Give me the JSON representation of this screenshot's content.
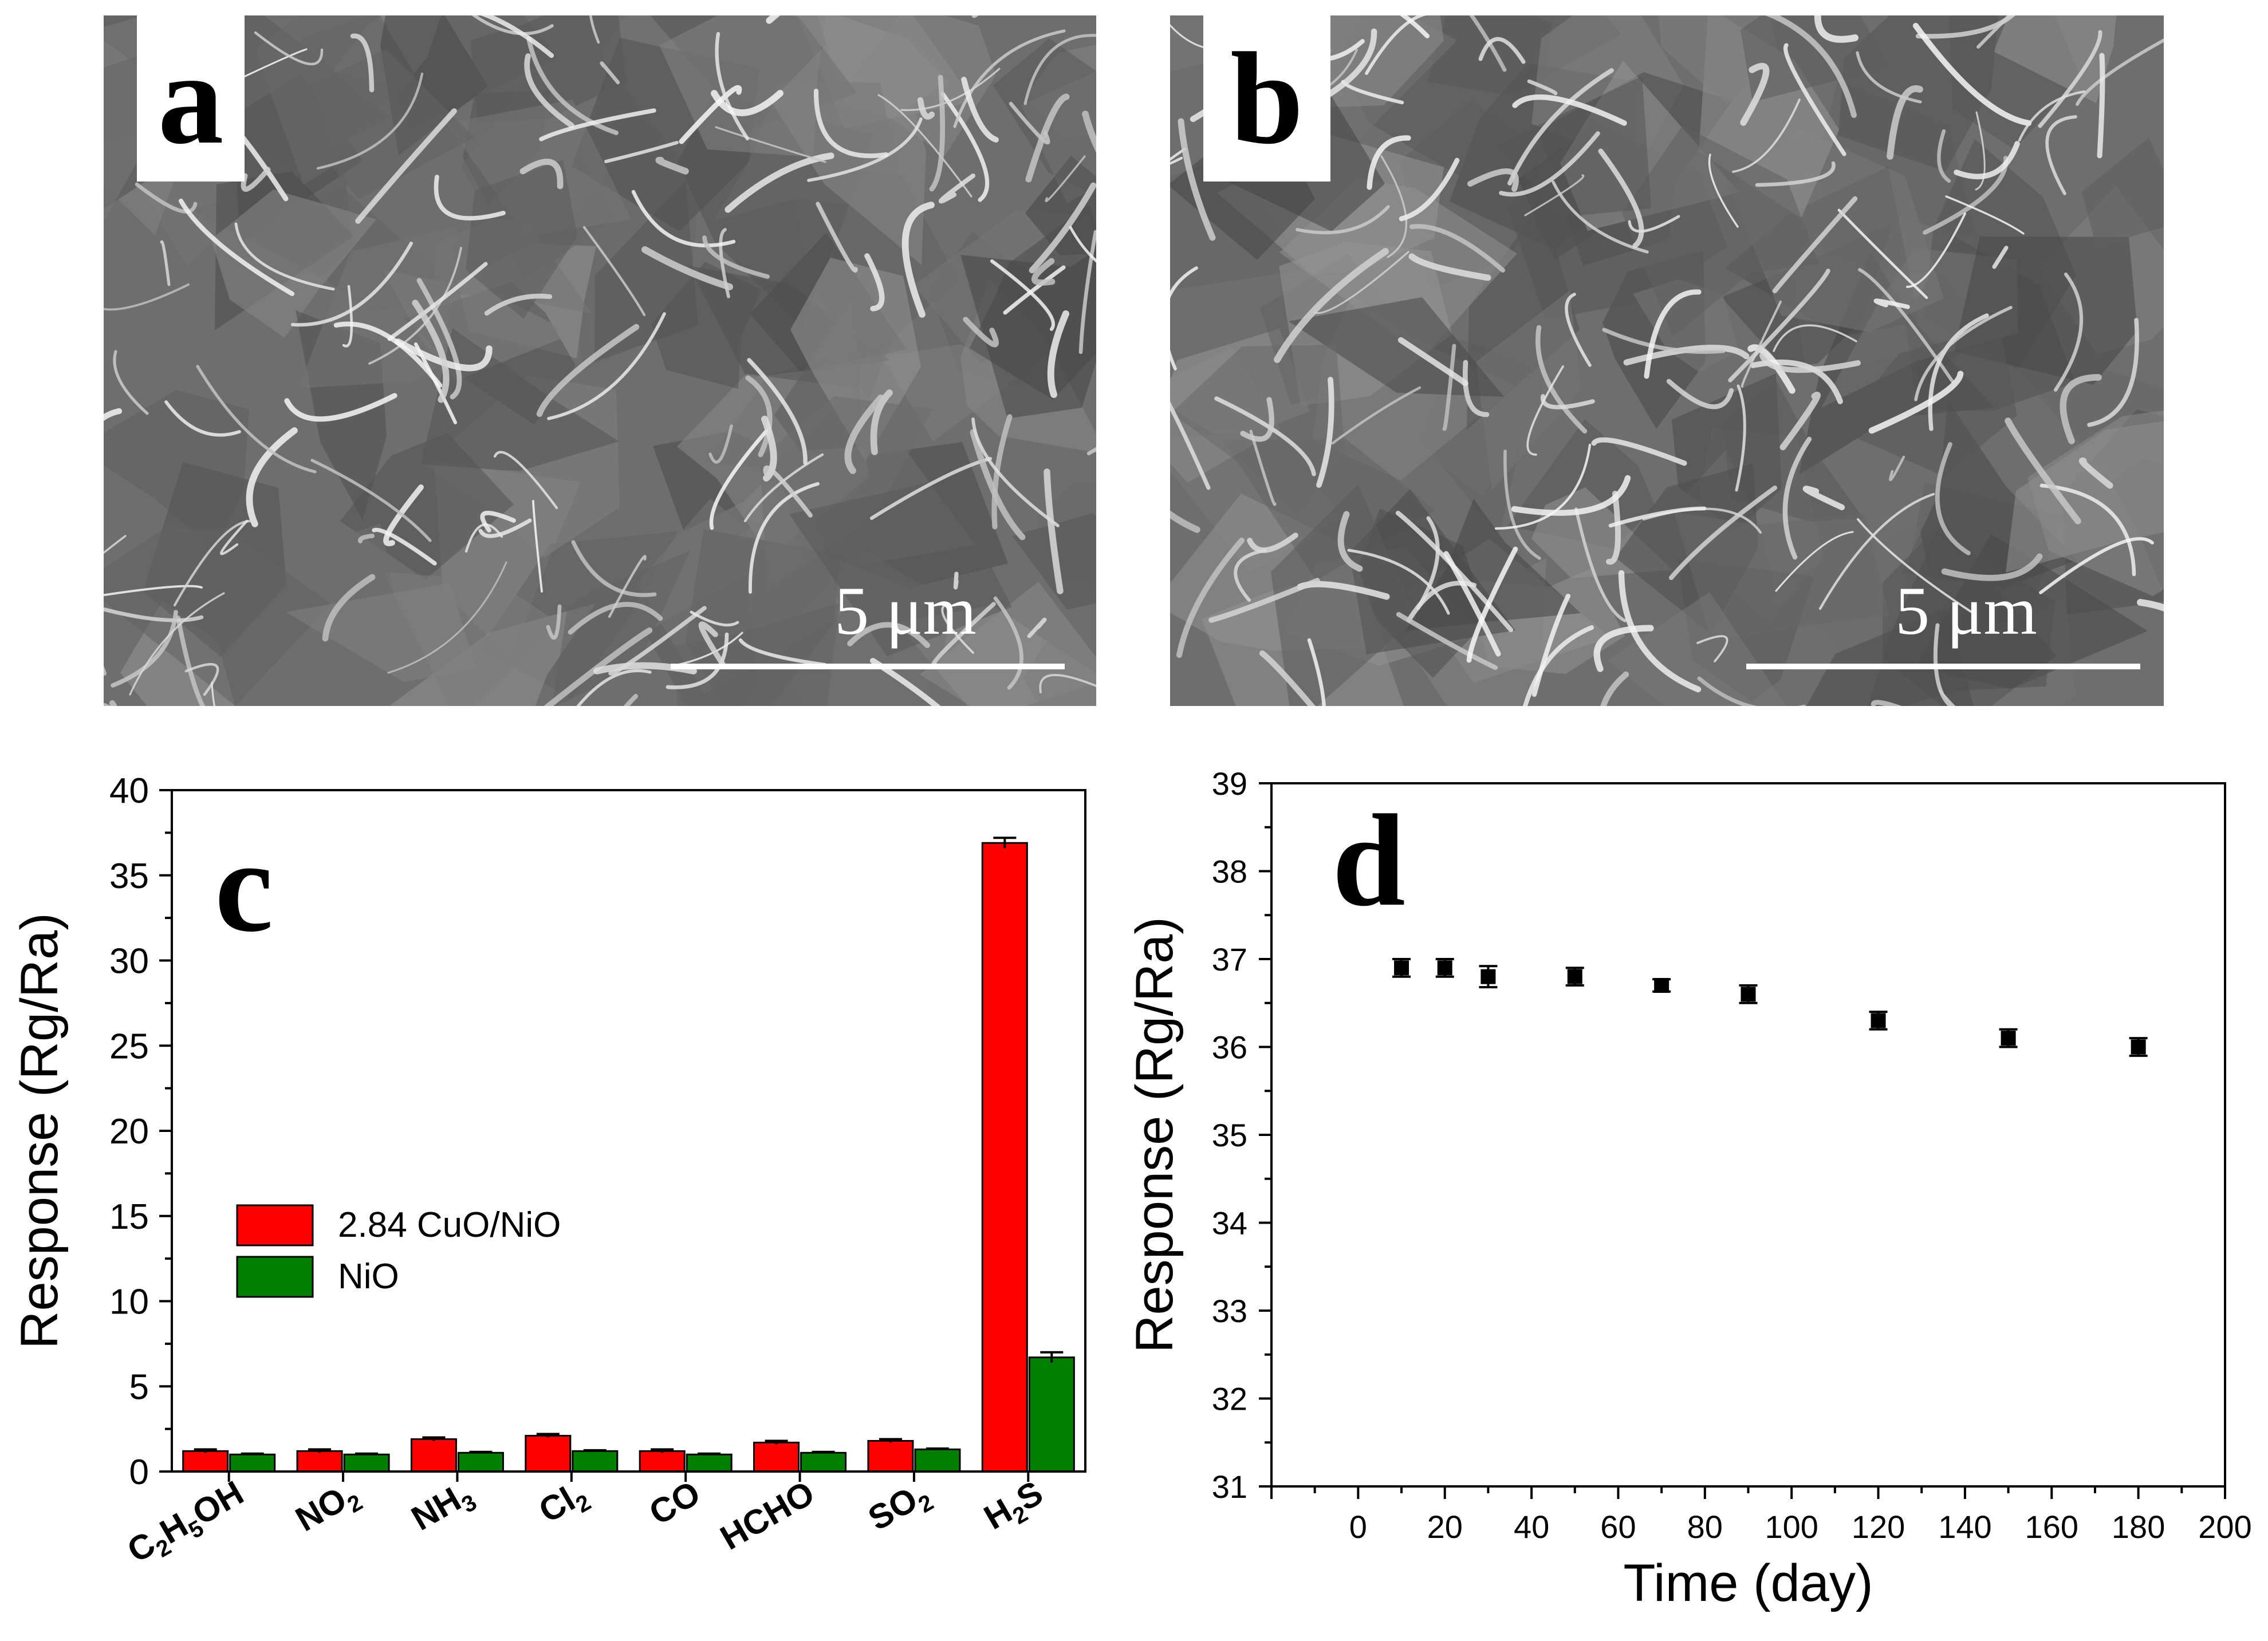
{
  "panels": {
    "a": {
      "letter": "a",
      "scale_label": "5 μm"
    },
    "b": {
      "letter": "b",
      "scale_label": "5 μm"
    },
    "c": {
      "letter": "c"
    },
    "d": {
      "letter": "d"
    }
  },
  "chart_data": [
    {
      "panel": "c",
      "type": "bar",
      "categories": [
        "C2H5OH",
        "NO2",
        "NH3",
        "Cl2",
        "CO",
        "HCHO",
        "SO2",
        "H2S"
      ],
      "category_labels": [
        [
          {
            "t": "C"
          },
          {
            "t": "2",
            "sub": true
          },
          {
            "t": "H"
          },
          {
            "t": "5",
            "sub": true
          },
          {
            "t": "OH"
          }
        ],
        [
          {
            "t": "NO"
          },
          {
            "t": "2",
            "sub": true
          }
        ],
        [
          {
            "t": "NH"
          },
          {
            "t": "3",
            "sub": true
          }
        ],
        [
          {
            "t": "Cl"
          },
          {
            "t": "2",
            "sub": true
          }
        ],
        [
          {
            "t": "CO"
          }
        ],
        [
          {
            "t": "HCHO"
          }
        ],
        [
          {
            "t": "SO"
          },
          {
            "t": "2",
            "sub": true
          }
        ],
        [
          {
            "t": "H"
          },
          {
            "t": "2",
            "sub": true
          },
          {
            "t": "S"
          }
        ]
      ],
      "series": [
        {
          "name": "2.84 CuO/NiO",
          "color": "#ff0000",
          "values": [
            1.2,
            1.2,
            1.9,
            2.1,
            1.2,
            1.7,
            1.8,
            36.9
          ],
          "errors": [
            0.1,
            0.1,
            0.1,
            0.1,
            0.1,
            0.1,
            0.1,
            0.3
          ]
        },
        {
          "name": "NiO",
          "color": "#008000",
          "values": [
            1.0,
            1.0,
            1.1,
            1.2,
            1.0,
            1.1,
            1.3,
            6.7
          ],
          "errors": [
            0.05,
            0.05,
            0.05,
            0.05,
            0.05,
            0.05,
            0.05,
            0.3
          ]
        }
      ],
      "ylabel": "Response (Rg/Ra)",
      "ylim": [
        0,
        40
      ],
      "yticks": [
        0,
        5,
        10,
        15,
        20,
        25,
        30,
        35,
        40
      ],
      "legend": "center-left",
      "grid": false
    },
    {
      "panel": "d",
      "type": "scatter",
      "x": [
        10,
        20,
        30,
        50,
        70,
        90,
        120,
        150,
        180
      ],
      "y": [
        36.9,
        36.9,
        36.8,
        36.8,
        36.7,
        36.6,
        36.3,
        36.1,
        36.0
      ],
      "errors": [
        0.1,
        0.1,
        0.12,
        0.1,
        0.07,
        0.1,
        0.1,
        0.1,
        0.1
      ],
      "xlabel": "Time (day)",
      "ylabel": "Response (Rg/Ra)",
      "xlim": [
        -20,
        200
      ],
      "ylim": [
        31,
        39
      ],
      "xticks": [
        0,
        20,
        40,
        60,
        80,
        100,
        120,
        140,
        160,
        180,
        200
      ],
      "yticks": [
        31,
        32,
        33,
        34,
        35,
        36,
        37,
        38,
        39
      ],
      "grid": false
    }
  ]
}
